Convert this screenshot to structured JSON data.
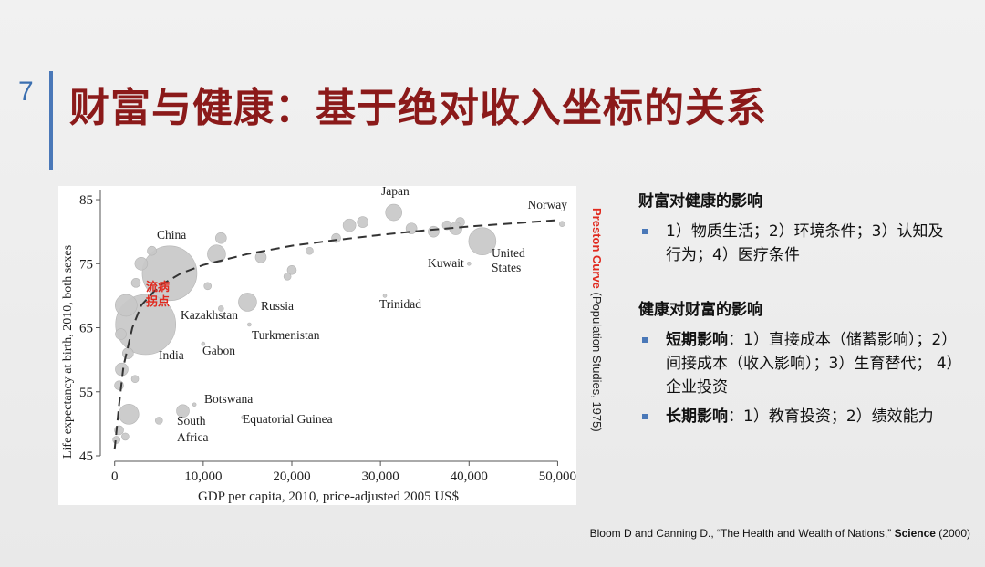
{
  "slide": {
    "number": "7",
    "title": "财富与健康：基于绝对收入坐标的关系"
  },
  "chart_data": {
    "type": "scatter",
    "title": "",
    "xlabel": "GDP per capita, 2010, price-adjusted 2005 US$",
    "ylabel": "Life expectancy at birth, 2010, both sexes",
    "xlim": [
      -1000,
      51500
    ],
    "ylim": [
      45,
      86
    ],
    "x_ticks": [
      0,
      10000,
      20000,
      30000,
      40000,
      50000
    ],
    "x_tick_labels": [
      "0",
      "10,000",
      "20,000",
      "30,000",
      "40,000",
      "50,000"
    ],
    "y_ticks": [
      45,
      55,
      65,
      75,
      85
    ],
    "y_tick_labels": [
      "45",
      "55",
      "65",
      "75",
      "85"
    ],
    "grid": false,
    "bubble_color": "#c8c8c8",
    "curve_color": "#333333",
    "points": [
      {
        "x": 6200,
        "y": 73.5,
        "size": 30,
        "label": "China"
      },
      {
        "x": 3500,
        "y": 65.5,
        "size": 33,
        "label": "India"
      },
      {
        "x": 31500,
        "y": 83,
        "size": 9,
        "label": "Japan"
      },
      {
        "x": 41500,
        "y": 78.5,
        "size": 15,
        "label": "United States"
      },
      {
        "x": 50500,
        "y": 81.2,
        "size": 3,
        "label": "Norway"
      },
      {
        "x": 15000,
        "y": 69,
        "size": 10,
        "label": "Russia"
      },
      {
        "x": 12000,
        "y": 68,
        "size": 3,
        "label": "Kazakhstan"
      },
      {
        "x": 15200,
        "y": 65.5,
        "size": 2,
        "label": "Turkmenistan"
      },
      {
        "x": 10000,
        "y": 62.5,
        "size": 2,
        "label": "Gabon"
      },
      {
        "x": 9000,
        "y": 53,
        "size": 2,
        "label": "Botswana"
      },
      {
        "x": 7700,
        "y": 52,
        "size": 7,
        "label": "South Africa"
      },
      {
        "x": 14500,
        "y": 51,
        "size": 2,
        "label": "Equatorial Guinea"
      },
      {
        "x": 30500,
        "y": 70,
        "size": 2,
        "label": "Trinidad"
      },
      {
        "x": 40000,
        "y": 75,
        "size": 2,
        "label": "Kuwait"
      },
      {
        "x": 1300,
        "y": 68.5,
        "size": 12
      },
      {
        "x": 700,
        "y": 64,
        "size": 6
      },
      {
        "x": 1500,
        "y": 61,
        "size": 6
      },
      {
        "x": 800,
        "y": 58.5,
        "size": 7
      },
      {
        "x": 500,
        "y": 56,
        "size": 5
      },
      {
        "x": 1600,
        "y": 51.5,
        "size": 11
      },
      {
        "x": 500,
        "y": 49,
        "size": 5
      },
      {
        "x": 200,
        "y": 47.5,
        "size": 4
      },
      {
        "x": 1200,
        "y": 48,
        "size": 4
      },
      {
        "x": 2300,
        "y": 57,
        "size": 4
      },
      {
        "x": 5000,
        "y": 50.5,
        "size": 4
      },
      {
        "x": 3000,
        "y": 75,
        "size": 7
      },
      {
        "x": 2400,
        "y": 72,
        "size": 5
      },
      {
        "x": 11500,
        "y": 76.5,
        "size": 10
      },
      {
        "x": 12000,
        "y": 79,
        "size": 6
      },
      {
        "x": 10500,
        "y": 71.5,
        "size": 4
      },
      {
        "x": 16500,
        "y": 76,
        "size": 6
      },
      {
        "x": 20000,
        "y": 74,
        "size": 5
      },
      {
        "x": 22000,
        "y": 77,
        "size": 4
      },
      {
        "x": 25000,
        "y": 79,
        "size": 5
      },
      {
        "x": 26500,
        "y": 81,
        "size": 7
      },
      {
        "x": 28000,
        "y": 81.5,
        "size": 6
      },
      {
        "x": 33500,
        "y": 80.5,
        "size": 6
      },
      {
        "x": 36000,
        "y": 80,
        "size": 6
      },
      {
        "x": 37500,
        "y": 81,
        "size": 5
      },
      {
        "x": 39000,
        "y": 81.5,
        "size": 5
      },
      {
        "x": 38500,
        "y": 80.5,
        "size": 7
      },
      {
        "x": 4200,
        "y": 77,
        "size": 5
      },
      {
        "x": 19500,
        "y": 73,
        "size": 4
      }
    ],
    "curve": {
      "name": "Preston Curve",
      "x": [
        0,
        500,
        1000,
        2000,
        3000,
        5000,
        7500,
        10000,
        15000,
        20000,
        25000,
        30000,
        35000,
        40000,
        45000,
        50000
      ],
      "y": [
        46,
        53,
        59,
        65,
        68.5,
        71.5,
        73.5,
        74.8,
        76.5,
        77.8,
        78.7,
        79.5,
        80.2,
        80.8,
        81.3,
        81.8
      ]
    },
    "annotation": {
      "text_line1": "流病",
      "text_line2": "拐点",
      "color": "#e02a1f"
    }
  },
  "caption": {
    "highlight": "Preston Curve",
    "rest": " (Population Studies, 1975)"
  },
  "right_panel": {
    "section1": {
      "heading": "财富对健康的影响",
      "items": [
        "1）物质生活；2）环境条件；3）认知及行为；4）医疗条件"
      ]
    },
    "section2": {
      "heading": "健康对财富的影响",
      "items": [
        {
          "lead": "短期影响",
          "text": "：1）直接成本（储蓄影响）；2）间接成本（收入影响）；3）生育替代； 4）企业投资"
        },
        {
          "lead": "长期影响",
          "text": "：1）教育投资；2）绩效能力"
        }
      ]
    }
  },
  "citation": {
    "before": "Bloom D and Canning D., “The Health and Wealth of Nations,” ",
    "journal": "Science",
    "after": " (2000)"
  }
}
